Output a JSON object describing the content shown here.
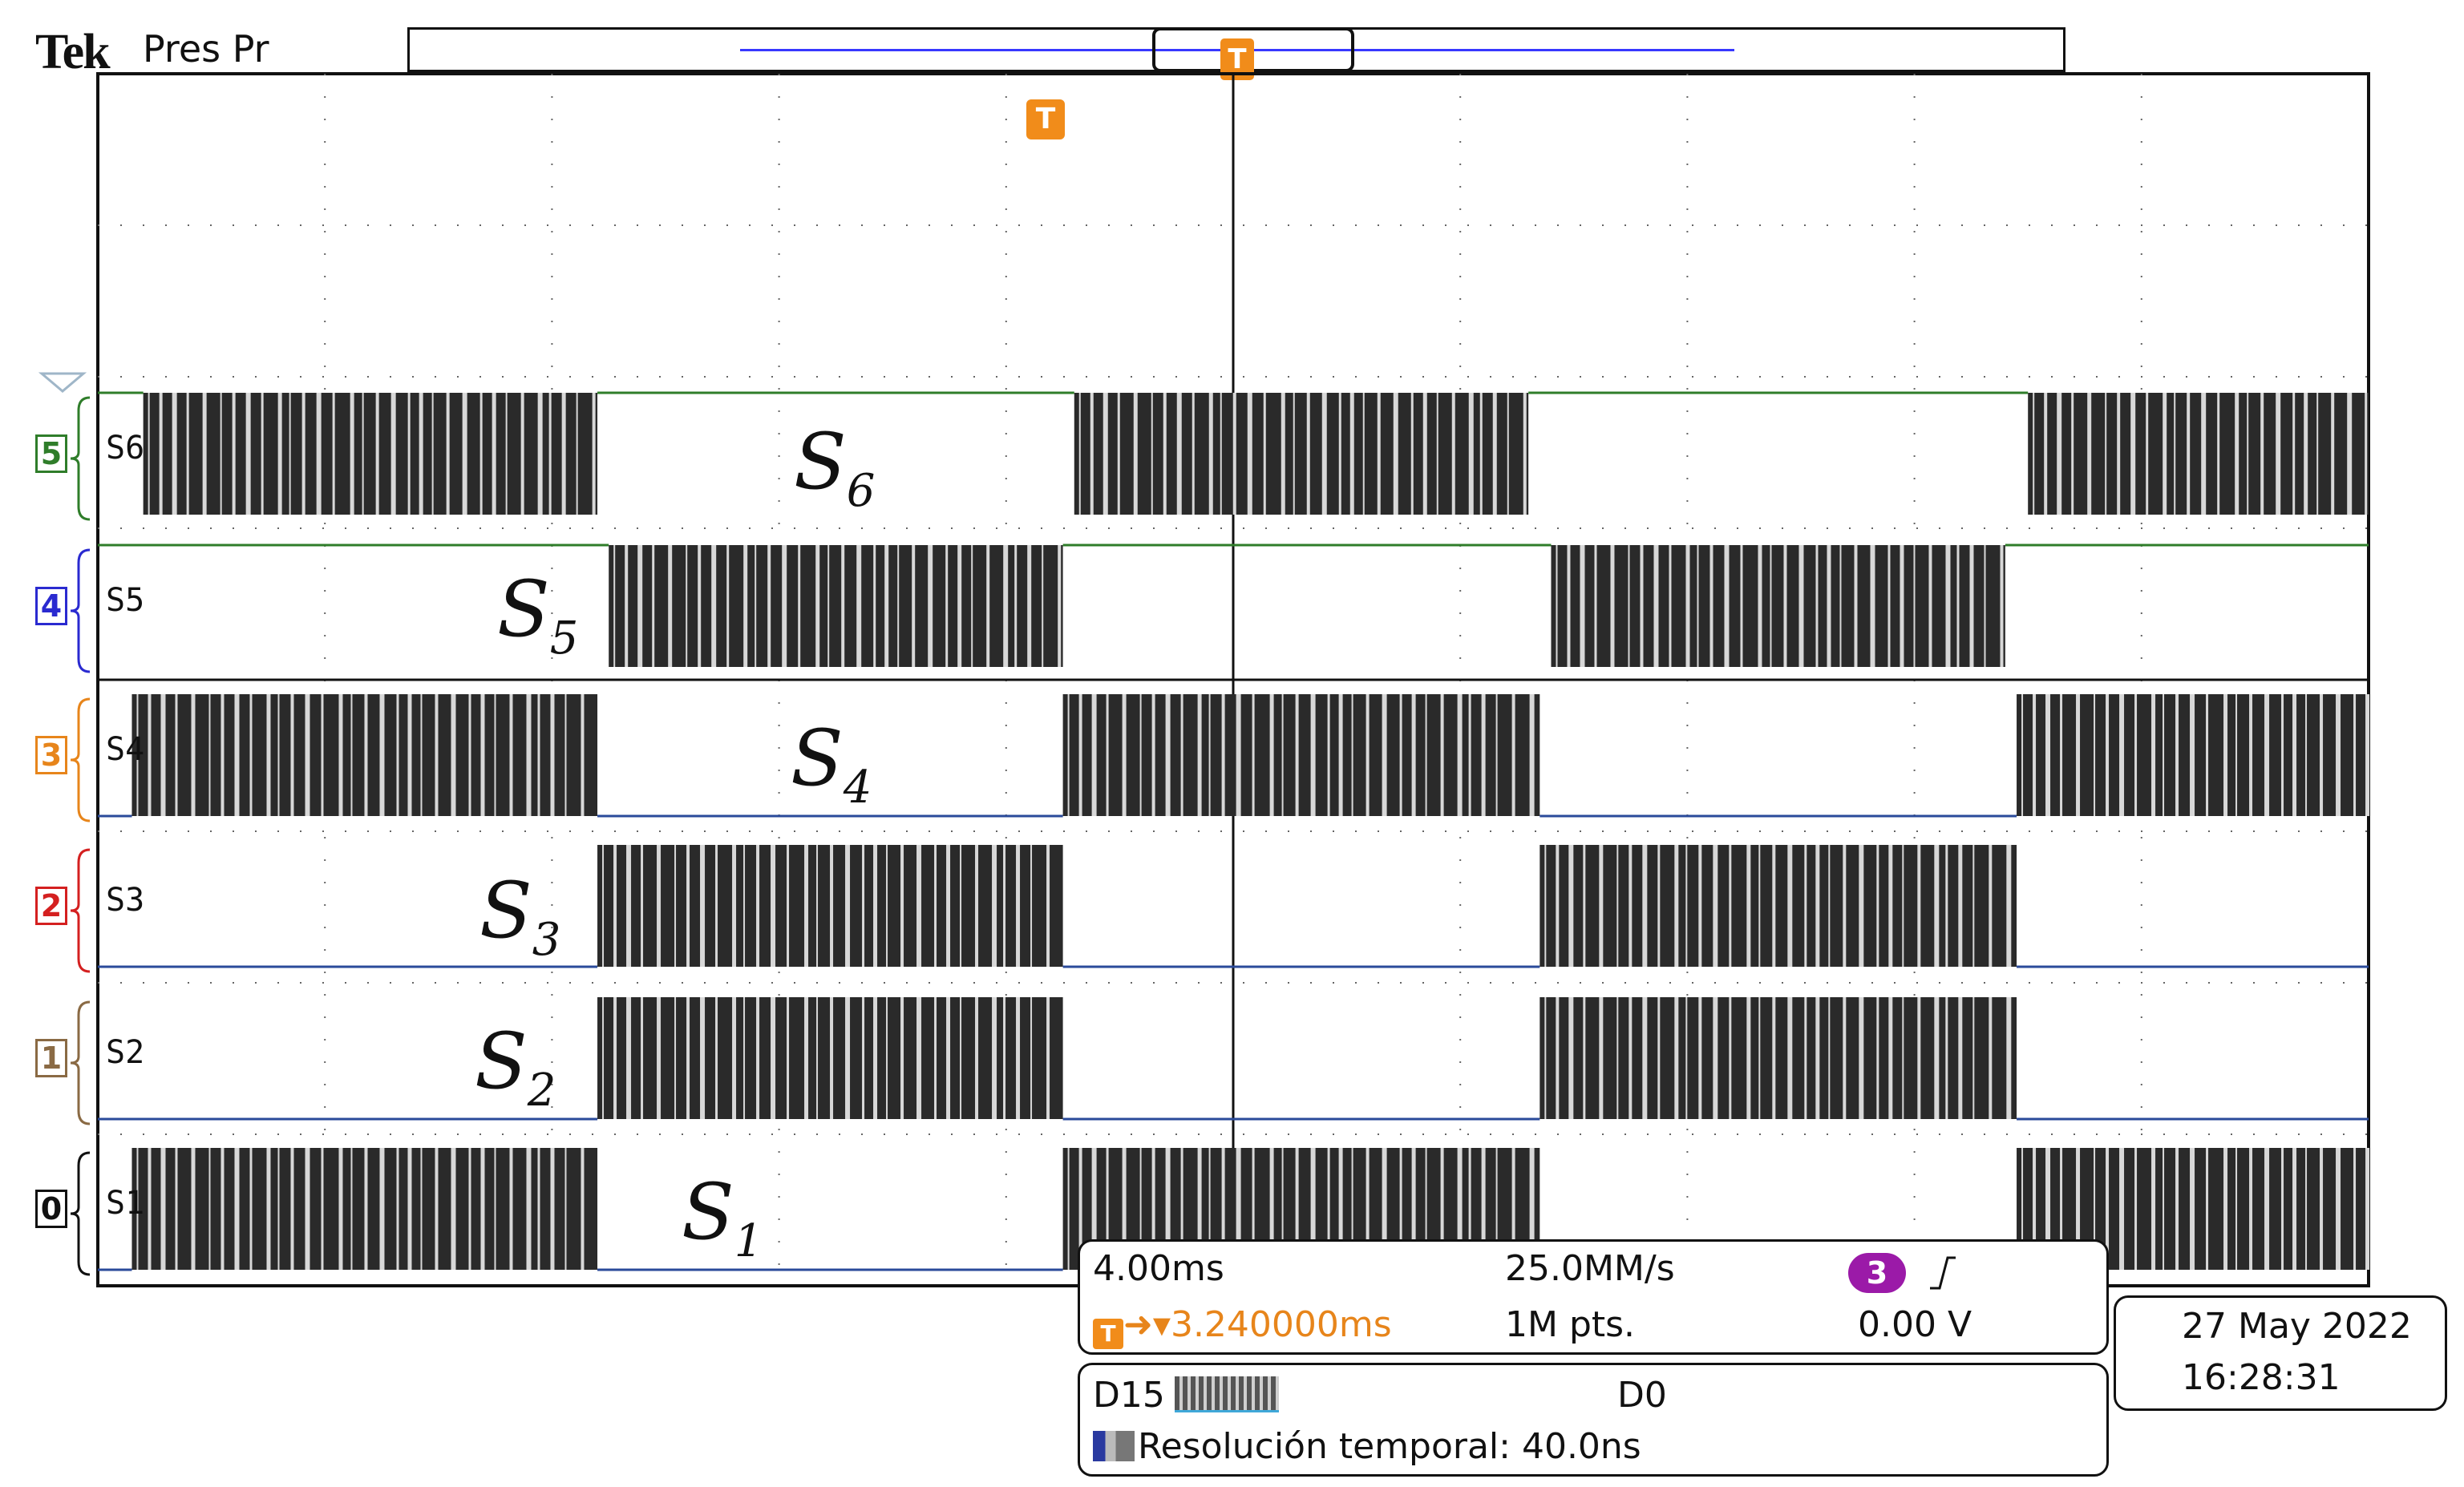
{
  "brand": "Tek",
  "status": "Pres Pr",
  "record_trigger_icon": "T",
  "trigger_marker_icon": "T",
  "channels": [
    {
      "number": "5",
      "label": "S6",
      "color": "#2f7d2a",
      "annotation": "S",
      "annotation_sub": "6"
    },
    {
      "number": "4",
      "label": "S5",
      "color": "#2a2ad0",
      "annotation": "S",
      "annotation_sub": "5"
    },
    {
      "number": "3",
      "label": "S4",
      "color": "#e7851b",
      "annotation": "S",
      "annotation_sub": "4"
    },
    {
      "number": "2",
      "label": "S3",
      "color": "#d42020",
      "annotation": "S",
      "annotation_sub": "3"
    },
    {
      "number": "1",
      "label": "S2",
      "color": "#8a6a44",
      "annotation": "S",
      "annotation_sub": "2"
    },
    {
      "number": "0",
      "label": "S1",
      "color": "#111111",
      "annotation": "S",
      "annotation_sub": "1"
    }
  ],
  "acquisition": {
    "time_per_div": "4.00ms",
    "trigger_position": "3.240000ms",
    "sample_rate": "25.0MM/s",
    "record_length": "1M pts.",
    "trigger_source": "3",
    "trigger_slope_icon": "rising-edge-icon",
    "trigger_level": "0.00 V"
  },
  "digital": {
    "high_label": "D15",
    "low_label": "D0",
    "resolution_text": "Resolución temporal: 40.0ns"
  },
  "datetime": {
    "date": "27 May  2022",
    "time": "16:28:31"
  },
  "colors": {
    "trigger_orange": "#e7851b",
    "trace_fill": "#2a2a2a",
    "grid": "#555555",
    "trigger_source": "#9b1aa8"
  },
  "signals": {
    "time_unit": "div",
    "division_count": 10,
    "switching_pattern": "dense PWM pulse bursts",
    "active_intervals": {
      "S6": [
        [
          0.2,
          2.2
        ],
        [
          4.3,
          6.3
        ],
        [
          8.5,
          10
        ]
      ],
      "S5": [
        [
          2.25,
          4.25
        ],
        [
          6.4,
          8.4
        ]
      ],
      "S4": [
        [
          0.15,
          2.2
        ],
        [
          4.25,
          6.35
        ],
        [
          8.45,
          10
        ]
      ],
      "S3": [
        [
          2.2,
          4.25
        ],
        [
          6.35,
          8.45
        ]
      ],
      "S2": [
        [
          2.2,
          4.25
        ],
        [
          6.35,
          8.45
        ]
      ],
      "S1": [
        [
          0.15,
          2.2
        ],
        [
          4.25,
          6.35
        ],
        [
          8.45,
          10
        ]
      ]
    }
  }
}
